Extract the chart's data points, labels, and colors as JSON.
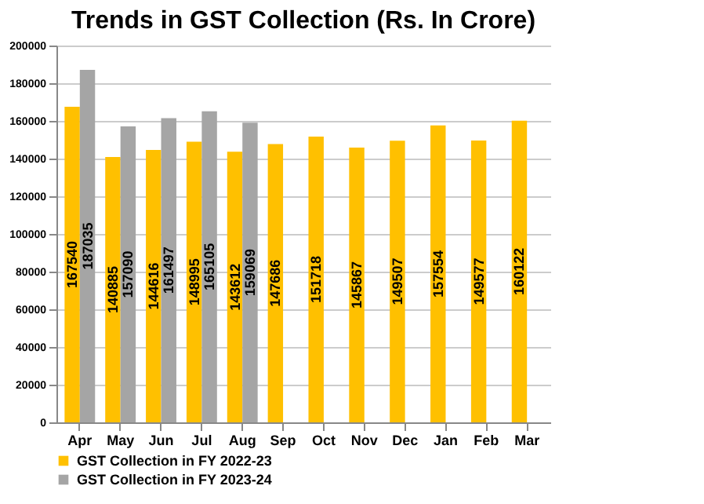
{
  "chart_data": {
    "type": "bar",
    "title": "Trends in GST Collection (Rs. In Crore)",
    "categories": [
      "Apr",
      "May",
      "Jun",
      "Jul",
      "Aug",
      "Sep",
      "Oct",
      "Nov",
      "Dec",
      "Jan",
      "Feb",
      "Mar"
    ],
    "series": [
      {
        "name": "GST Collection in FY 2022-23",
        "color": "#ffc000",
        "values": [
          167540,
          140885,
          144616,
          148995,
          143612,
          147686,
          151718,
          145867,
          149507,
          157554,
          149577,
          160122
        ]
      },
      {
        "name": "GST Collection in FY 2023-24",
        "color": "#a5a5a5",
        "values": [
          187035,
          157090,
          161497,
          165105,
          159069,
          null,
          null,
          null,
          null,
          null,
          null,
          null
        ]
      }
    ],
    "ylim": [
      0,
      200000
    ],
    "yticks": [
      0,
      20000,
      40000,
      60000,
      80000,
      100000,
      120000,
      140000,
      160000,
      180000,
      200000
    ],
    "grid": "y",
    "legend": "bottom",
    "data_labels": true
  }
}
